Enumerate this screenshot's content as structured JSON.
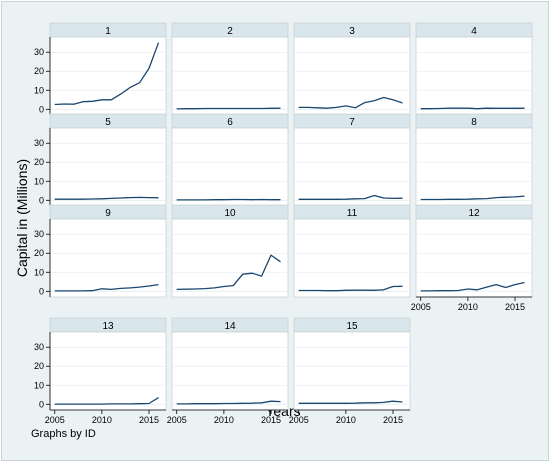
{
  "chart_data": {
    "type": "line",
    "layout": "small-multiples",
    "ylabel": "Capital in (Millions)",
    "xlabel": "Years",
    "note": "Graphs by ID",
    "x": [
      2005,
      2006,
      2007,
      2008,
      2009,
      2010,
      2011,
      2012,
      2013,
      2014,
      2015,
      2016
    ],
    "xticks": [
      2005,
      2010,
      2015
    ],
    "yticks": [
      0,
      10,
      20,
      30
    ],
    "ylim": [
      -3,
      38
    ],
    "xlim": [
      2004.5,
      2016.8
    ],
    "line_color": "#1a476f",
    "panel_header_color": "#d9e6eb",
    "panel_bg": "#ffffff",
    "outer_bg": "#eaf2f3",
    "grid": true,
    "series": [
      {
        "name": "1",
        "values": [
          2.5,
          2.8,
          2.7,
          4.0,
          4.2,
          5.0,
          5.0,
          8.0,
          11.5,
          14.0,
          21.5,
          35.0
        ]
      },
      {
        "name": "2",
        "values": [
          0.2,
          0.3,
          0.3,
          0.4,
          0.4,
          0.4,
          0.4,
          0.4,
          0.4,
          0.4,
          0.5,
          0.6
        ]
      },
      {
        "name": "3",
        "values": [
          1.0,
          1.0,
          0.8,
          0.6,
          1.0,
          1.8,
          0.8,
          3.5,
          4.5,
          6.2,
          5.0,
          3.3
        ]
      },
      {
        "name": "4",
        "values": [
          0.3,
          0.3,
          0.4,
          0.6,
          0.6,
          0.6,
          0.3,
          0.6,
          0.5,
          0.5,
          0.5,
          0.6
        ]
      },
      {
        "name": "5",
        "values": [
          0.6,
          0.6,
          0.6,
          0.6,
          0.7,
          0.8,
          1.0,
          1.2,
          1.4,
          1.5,
          1.4,
          1.3
        ]
      },
      {
        "name": "6",
        "values": [
          0.2,
          0.2,
          0.2,
          0.2,
          0.3,
          0.3,
          0.4,
          0.4,
          0.3,
          0.4,
          0.3,
          0.3
        ]
      },
      {
        "name": "7",
        "values": [
          0.5,
          0.5,
          0.5,
          0.5,
          0.5,
          0.6,
          0.8,
          0.9,
          2.5,
          1.2,
          1.0,
          1.1
        ]
      },
      {
        "name": "8",
        "values": [
          0.4,
          0.4,
          0.4,
          0.5,
          0.5,
          0.6,
          0.8,
          0.9,
          1.4,
          1.6,
          1.8,
          2.2
        ]
      },
      {
        "name": "9",
        "values": [
          0.2,
          0.2,
          0.2,
          0.2,
          0.3,
          1.3,
          1.0,
          1.5,
          1.8,
          2.2,
          2.8,
          3.5
        ]
      },
      {
        "name": "10",
        "values": [
          1.0,
          1.1,
          1.2,
          1.4,
          1.8,
          2.5,
          3.0,
          9.0,
          9.5,
          8.0,
          19.0,
          15.5
        ]
      },
      {
        "name": "11",
        "values": [
          0.4,
          0.4,
          0.4,
          0.3,
          0.3,
          0.5,
          0.6,
          0.6,
          0.5,
          0.8,
          2.5,
          2.6
        ]
      },
      {
        "name": "12",
        "values": [
          0.2,
          0.2,
          0.3,
          0.3,
          0.4,
          1.2,
          0.8,
          2.2,
          3.5,
          2.0,
          3.5,
          4.6
        ]
      },
      {
        "name": "13",
        "values": [
          0.1,
          0.1,
          0.1,
          0.1,
          0.1,
          0.1,
          0.2,
          0.2,
          0.2,
          0.3,
          0.4,
          3.5
        ]
      },
      {
        "name": "14",
        "values": [
          0.2,
          0.2,
          0.3,
          0.3,
          0.3,
          0.4,
          0.4,
          0.5,
          0.6,
          0.8,
          1.6,
          1.4
        ]
      },
      {
        "name": "15",
        "values": [
          0.5,
          0.5,
          0.5,
          0.5,
          0.5,
          0.5,
          0.6,
          0.8,
          0.8,
          1.0,
          1.6,
          1.2
        ]
      }
    ]
  }
}
